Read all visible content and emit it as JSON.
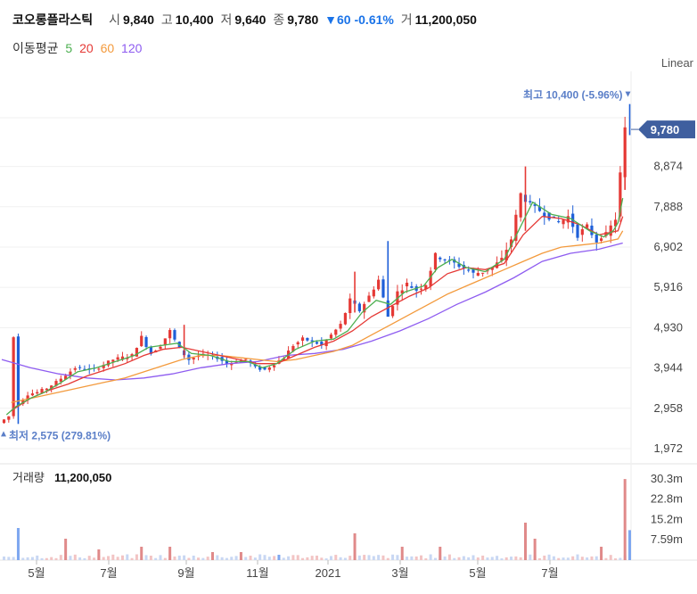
{
  "header": {
    "stock_name": "코오롱플라스틱",
    "open_label": "시",
    "open": "9,840",
    "high_label": "고",
    "high": "10,400",
    "low_label": "저",
    "low": "9,640",
    "close_label": "종",
    "close": "9,780",
    "change": "▼60 -0.61%",
    "volume_label": "거",
    "volume": "11,200,050"
  },
  "ma_legend": {
    "label": "이동평균",
    "items": [
      {
        "period": "5",
        "color": "#4caf50"
      },
      {
        "period": "20",
        "color": "#e53935"
      },
      {
        "period": "60",
        "color": "#f39a3c"
      },
      {
        "period": "120",
        "color": "#8e5cf0"
      }
    ]
  },
  "chart_data": {
    "type": "candlestick",
    "scale_label": "Linear",
    "y_ticks": [
      "8,874",
      "7,888",
      "6,902",
      "5,916",
      "4,930",
      "3,944",
      "2,958",
      "1,972"
    ],
    "y_tick_values": [
      8874,
      7888,
      6902,
      5916,
      4930,
      3944,
      2958,
      1972
    ],
    "ylim": [
      1600,
      11200
    ],
    "x_ticks": [
      "5월",
      "7월",
      "9월",
      "11월",
      "2021",
      "3월",
      "5월",
      "7월"
    ],
    "current_price_label": "9,780",
    "current_price": 9780,
    "high_annotation": "최고 10,400 (-5.96%)",
    "high_value": 10400,
    "low_annotation": "최저 2,575 (279.81%)",
    "low_value": 2575,
    "price_path": [
      [
        0,
        2600
      ],
      [
        2,
        2760
      ],
      [
        3,
        4700
      ],
      [
        4,
        3050
      ],
      [
        6,
        3300
      ],
      [
        8,
        3350
      ],
      [
        10,
        3450
      ],
      [
        12,
        3600
      ],
      [
        16,
        3950
      ],
      [
        20,
        3900
      ],
      [
        24,
        4150
      ],
      [
        28,
        4250
      ],
      [
        30,
        4700
      ],
      [
        32,
        4300
      ],
      [
        34,
        4500
      ],
      [
        36,
        4850
      ],
      [
        38,
        4400
      ],
      [
        40,
        4150
      ],
      [
        42,
        4250
      ],
      [
        44,
        4250
      ],
      [
        46,
        4200
      ],
      [
        48,
        4050
      ],
      [
        50,
        4100
      ],
      [
        52,
        4150
      ],
      [
        54,
        3950
      ],
      [
        56,
        3900
      ],
      [
        58,
        4050
      ],
      [
        60,
        4200
      ],
      [
        62,
        4500
      ],
      [
        64,
        4650
      ],
      [
        66,
        4600
      ],
      [
        68,
        4500
      ],
      [
        70,
        4750
      ],
      [
        72,
        5000
      ],
      [
        74,
        5600
      ],
      [
        76,
        5350
      ],
      [
        78,
        5700
      ],
      [
        80,
        6100
      ],
      [
        82,
        5200
      ],
      [
        84,
        5800
      ],
      [
        86,
        6000
      ],
      [
        88,
        5850
      ],
      [
        90,
        6000
      ],
      [
        92,
        6700
      ],
      [
        94,
        6600
      ],
      [
        96,
        6500
      ],
      [
        98,
        6400
      ],
      [
        100,
        6250
      ],
      [
        102,
        6300
      ],
      [
        104,
        6400
      ],
      [
        106,
        6600
      ],
      [
        108,
        7100
      ],
      [
        110,
        8200
      ],
      [
        112,
        7950
      ],
      [
        114,
        7800
      ],
      [
        116,
        7650
      ],
      [
        118,
        7500
      ],
      [
        120,
        7650
      ],
      [
        122,
        7200
      ],
      [
        124,
        7400
      ],
      [
        126,
        7050
      ],
      [
        128,
        7200
      ],
      [
        130,
        7600
      ],
      [
        132,
        9780
      ]
    ],
    "ma5": [
      [
        1,
        2800
      ],
      [
        3,
        3000
      ],
      [
        6,
        3200
      ],
      [
        9,
        3350
      ],
      [
        12,
        3550
      ],
      [
        16,
        3850
      ],
      [
        20,
        3950
      ],
      [
        24,
        4100
      ],
      [
        28,
        4250
      ],
      [
        31,
        4450
      ],
      [
        34,
        4500
      ],
      [
        37,
        4550
      ],
      [
        40,
        4300
      ],
      [
        44,
        4250
      ],
      [
        48,
        4100
      ],
      [
        52,
        4100
      ],
      [
        55,
        3950
      ],
      [
        58,
        4050
      ],
      [
        62,
        4400
      ],
      [
        66,
        4600
      ],
      [
        70,
        4650
      ],
      [
        73,
        4850
      ],
      [
        76,
        5300
      ],
      [
        79,
        5600
      ],
      [
        82,
        5500
      ],
      [
        85,
        5800
      ],
      [
        89,
        5950
      ],
      [
        92,
        6400
      ],
      [
        95,
        6600
      ],
      [
        98,
        6400
      ],
      [
        102,
        6300
      ],
      [
        106,
        6600
      ],
      [
        109,
        7300
      ],
      [
        112,
        8000
      ],
      [
        116,
        7700
      ],
      [
        120,
        7600
      ],
      [
        124,
        7300
      ],
      [
        127,
        7150
      ],
      [
        129,
        7300
      ],
      [
        130,
        7500
      ],
      [
        131,
        8100
      ]
    ],
    "ma20": [
      [
        2,
        2900
      ],
      [
        6,
        3200
      ],
      [
        10,
        3400
      ],
      [
        14,
        3550
      ],
      [
        18,
        3750
      ],
      [
        22,
        3900
      ],
      [
        26,
        4050
      ],
      [
        30,
        4250
      ],
      [
        34,
        4400
      ],
      [
        38,
        4450
      ],
      [
        42,
        4350
      ],
      [
        46,
        4250
      ],
      [
        50,
        4150
      ],
      [
        54,
        4050
      ],
      [
        58,
        4050
      ],
      [
        62,
        4250
      ],
      [
        66,
        4450
      ],
      [
        70,
        4600
      ],
      [
        74,
        4850
      ],
      [
        78,
        5200
      ],
      [
        82,
        5450
      ],
      [
        86,
        5700
      ],
      [
        90,
        5900
      ],
      [
        94,
        6250
      ],
      [
        98,
        6400
      ],
      [
        102,
        6350
      ],
      [
        106,
        6500
      ],
      [
        110,
        7200
      ],
      [
        114,
        7650
      ],
      [
        118,
        7600
      ],
      [
        122,
        7450
      ],
      [
        126,
        7200
      ],
      [
        130,
        7300
      ],
      [
        131,
        7650
      ]
    ],
    "ma60": [
      [
        2,
        3100
      ],
      [
        6,
        3200
      ],
      [
        10,
        3300
      ],
      [
        14,
        3400
      ],
      [
        18,
        3500
      ],
      [
        22,
        3600
      ],
      [
        26,
        3700
      ],
      [
        30,
        3850
      ],
      [
        34,
        4000
      ],
      [
        38,
        4150
      ],
      [
        42,
        4250
      ],
      [
        46,
        4250
      ],
      [
        50,
        4200
      ],
      [
        54,
        4150
      ],
      [
        58,
        4100
      ],
      [
        62,
        4150
      ],
      [
        66,
        4250
      ],
      [
        70,
        4350
      ],
      [
        74,
        4500
      ],
      [
        78,
        4750
      ],
      [
        82,
        5000
      ],
      [
        86,
        5250
      ],
      [
        90,
        5500
      ],
      [
        94,
        5750
      ],
      [
        98,
        5950
      ],
      [
        102,
        6150
      ],
      [
        106,
        6350
      ],
      [
        110,
        6550
      ],
      [
        114,
        6750
      ],
      [
        118,
        6900
      ],
      [
        122,
        6950
      ],
      [
        126,
        7000
      ],
      [
        130,
        7100
      ],
      [
        131,
        7300
      ]
    ],
    "ma120": [
      [
        0,
        4150
      ],
      [
        6,
        3950
      ],
      [
        12,
        3800
      ],
      [
        18,
        3700
      ],
      [
        24,
        3650
      ],
      [
        30,
        3700
      ],
      [
        36,
        3800
      ],
      [
        42,
        3950
      ],
      [
        48,
        4050
      ],
      [
        54,
        4100
      ],
      [
        60,
        4250
      ],
      [
        66,
        4300
      ],
      [
        72,
        4400
      ],
      [
        78,
        4600
      ],
      [
        84,
        4850
      ],
      [
        90,
        5150
      ],
      [
        96,
        5500
      ],
      [
        102,
        5800
      ],
      [
        108,
        6150
      ],
      [
        114,
        6550
      ],
      [
        120,
        6750
      ],
      [
        126,
        6850
      ],
      [
        131,
        7000
      ]
    ],
    "volume": {
      "label": "거래량",
      "value_text": "11,200,050",
      "y_ticks": [
        "30.3m",
        "22.8m",
        "15.2m",
        "7.59m"
      ],
      "y_tick_values": [
        30.3,
        22.8,
        15.2,
        7.59
      ],
      "ylim": [
        0,
        36
      ],
      "bars": [
        [
          3,
          12,
          "#7ea7f0"
        ],
        [
          13,
          8,
          "#e08a8a"
        ],
        [
          20,
          4,
          "#e08a8a"
        ],
        [
          29,
          5,
          "#e08a8a"
        ],
        [
          35,
          5,
          "#e08a8a"
        ],
        [
          44,
          3,
          "#e08a8a"
        ],
        [
          50,
          3,
          "#e08a8a"
        ],
        [
          58,
          2,
          "#7ea7f0"
        ],
        [
          74,
          10,
          "#e08a8a"
        ],
        [
          84,
          5,
          "#e08a8a"
        ],
        [
          92,
          5,
          "#e08a8a"
        ],
        [
          110,
          14,
          "#e08a8a"
        ],
        [
          112,
          8,
          "#e08a8a"
        ],
        [
          126,
          5,
          "#e08a8a"
        ],
        [
          131,
          30.3,
          "#e08a8a"
        ],
        [
          132,
          11.2,
          "#7ea7f0"
        ]
      ]
    }
  }
}
